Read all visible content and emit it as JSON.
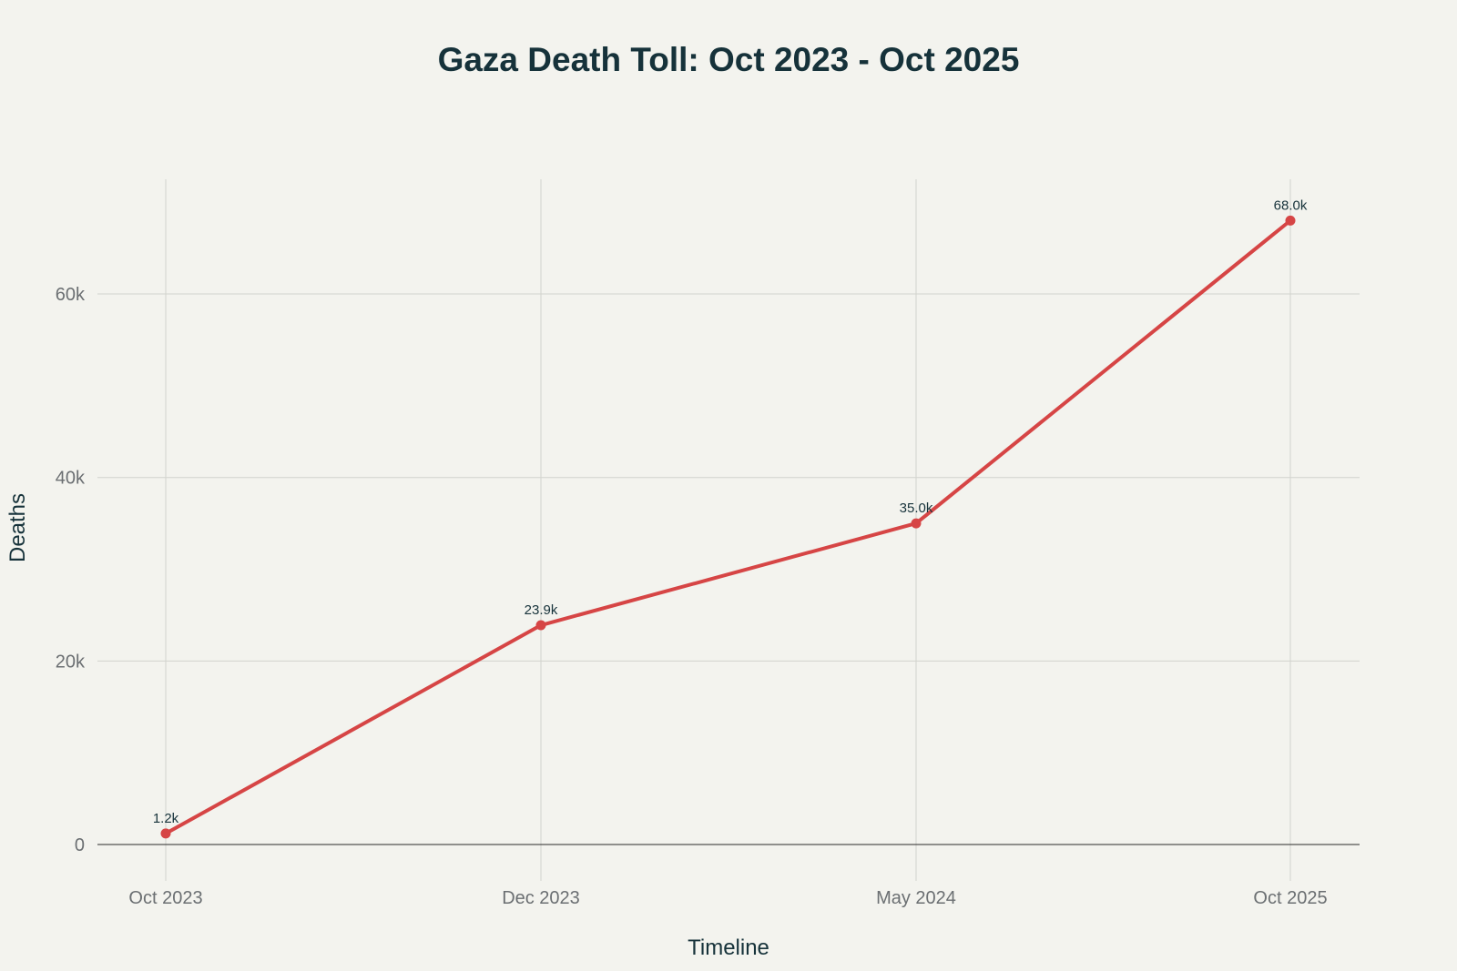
{
  "chart_data": {
    "type": "line",
    "title": "Gaza Death Toll: Oct 2023 - Oct 2025",
    "xlabel": "Timeline",
    "ylabel": "Deaths",
    "categories": [
      "Oct 2023",
      "Dec 2023",
      "May 2024",
      "Oct 2025"
    ],
    "series": [
      {
        "values": [
          1200,
          23900,
          35000,
          68000
        ],
        "labels": [
          "1.2k",
          "23.9k",
          "35.0k",
          "68.0k"
        ],
        "color": "#d64545"
      }
    ],
    "ylim": [
      0,
      72500
    ],
    "yticks": [
      0,
      20000,
      40000,
      60000
    ],
    "ytick_labels": [
      "0",
      "20k",
      "40k",
      "60k"
    ],
    "grid": true,
    "background": "#f3f3ee"
  }
}
